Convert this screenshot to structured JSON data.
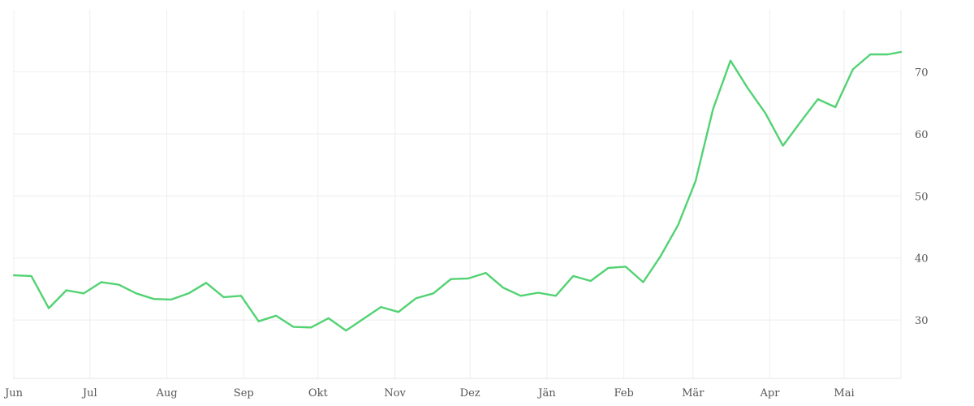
{
  "chart_data": {
    "type": "line",
    "title": "",
    "xlabel": "",
    "ylabel": "",
    "x_ticks": [
      "Jun",
      "Jul",
      "Aug",
      "Sep",
      "Okt",
      "Nov",
      "Dez",
      "Jän",
      "Feb",
      "Mär",
      "Apr",
      "Mai"
    ],
    "y_ticks": [
      30,
      40,
      50,
      60,
      70
    ],
    "ylim": [
      20.6,
      80
    ],
    "xlim_weeks": [
      -0.05,
      50.75
    ],
    "grid": true,
    "y_axis_side": "right",
    "line_color": "#52d273",
    "series": [
      {
        "x_weeks": [
          0,
          1,
          2,
          3,
          4,
          5,
          6,
          7,
          8,
          9,
          10,
          11,
          12,
          13,
          14,
          15,
          16,
          17,
          18,
          19,
          20,
          21,
          22,
          23,
          24,
          25,
          26,
          27,
          28,
          29,
          30,
          31,
          32,
          33,
          34,
          35,
          36,
          37,
          38,
          39,
          40,
          41,
          42,
          43,
          44,
          45,
          46,
          47,
          48,
          49,
          50,
          50.75
        ],
        "values": [
          37.2,
          37.1,
          31.9,
          34.8,
          34.3,
          36.1,
          35.7,
          34.3,
          33.4,
          33.3,
          34.3,
          36.0,
          33.7,
          33.9,
          29.8,
          30.7,
          28.9,
          28.8,
          30.3,
          28.3,
          30.2,
          32.1,
          31.3,
          33.5,
          34.3,
          36.6,
          36.7,
          37.6,
          35.2,
          33.9,
          34.4,
          33.9,
          37.1,
          36.3,
          38.4,
          38.6,
          36.1,
          40.3,
          45.3,
          52.4,
          64.0,
          71.8,
          67.3,
          63.3,
          58.1,
          61.9,
          65.6,
          64.3,
          70.4,
          72.8,
          72.8,
          73.2
        ]
      }
    ]
  }
}
